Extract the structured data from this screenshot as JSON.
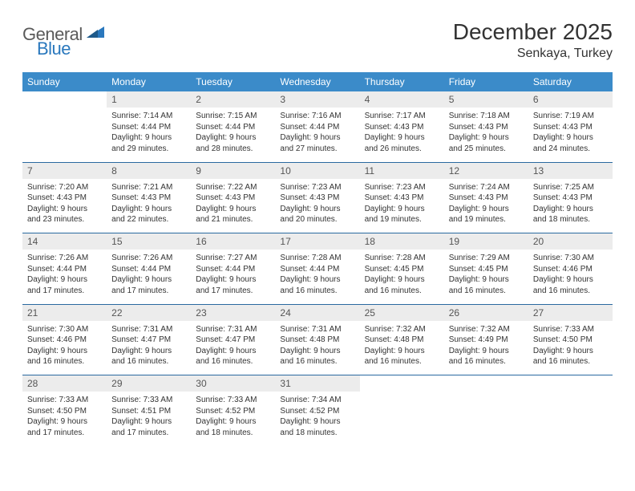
{
  "brand": {
    "text_general": "General",
    "text_blue": "Blue",
    "logo_color": "#2a78bd",
    "text_gray": "#5a5a5a"
  },
  "header": {
    "month_title": "December 2025",
    "location": "Senkaya, Turkey"
  },
  "colors": {
    "header_bg": "#3b8bc9",
    "header_text": "#ffffff",
    "daynum_bg": "#ececec",
    "daynum_text": "#555555",
    "body_text": "#333333",
    "separator": "#2a6aa0",
    "page_bg": "#ffffff"
  },
  "weekdays": [
    "Sunday",
    "Monday",
    "Tuesday",
    "Wednesday",
    "Thursday",
    "Friday",
    "Saturday"
  ],
  "weeks": [
    [
      null,
      {
        "n": "1",
        "sr": "7:14 AM",
        "ss": "4:44 PM",
        "dl": "9 hours and 29 minutes."
      },
      {
        "n": "2",
        "sr": "7:15 AM",
        "ss": "4:44 PM",
        "dl": "9 hours and 28 minutes."
      },
      {
        "n": "3",
        "sr": "7:16 AM",
        "ss": "4:44 PM",
        "dl": "9 hours and 27 minutes."
      },
      {
        "n": "4",
        "sr": "7:17 AM",
        "ss": "4:43 PM",
        "dl": "9 hours and 26 minutes."
      },
      {
        "n": "5",
        "sr": "7:18 AM",
        "ss": "4:43 PM",
        "dl": "9 hours and 25 minutes."
      },
      {
        "n": "6",
        "sr": "7:19 AM",
        "ss": "4:43 PM",
        "dl": "9 hours and 24 minutes."
      }
    ],
    [
      {
        "n": "7",
        "sr": "7:20 AM",
        "ss": "4:43 PM",
        "dl": "9 hours and 23 minutes."
      },
      {
        "n": "8",
        "sr": "7:21 AM",
        "ss": "4:43 PM",
        "dl": "9 hours and 22 minutes."
      },
      {
        "n": "9",
        "sr": "7:22 AM",
        "ss": "4:43 PM",
        "dl": "9 hours and 21 minutes."
      },
      {
        "n": "10",
        "sr": "7:23 AM",
        "ss": "4:43 PM",
        "dl": "9 hours and 20 minutes."
      },
      {
        "n": "11",
        "sr": "7:23 AM",
        "ss": "4:43 PM",
        "dl": "9 hours and 19 minutes."
      },
      {
        "n": "12",
        "sr": "7:24 AM",
        "ss": "4:43 PM",
        "dl": "9 hours and 19 minutes."
      },
      {
        "n": "13",
        "sr": "7:25 AM",
        "ss": "4:43 PM",
        "dl": "9 hours and 18 minutes."
      }
    ],
    [
      {
        "n": "14",
        "sr": "7:26 AM",
        "ss": "4:44 PM",
        "dl": "9 hours and 17 minutes."
      },
      {
        "n": "15",
        "sr": "7:26 AM",
        "ss": "4:44 PM",
        "dl": "9 hours and 17 minutes."
      },
      {
        "n": "16",
        "sr": "7:27 AM",
        "ss": "4:44 PM",
        "dl": "9 hours and 17 minutes."
      },
      {
        "n": "17",
        "sr": "7:28 AM",
        "ss": "4:44 PM",
        "dl": "9 hours and 16 minutes."
      },
      {
        "n": "18",
        "sr": "7:28 AM",
        "ss": "4:45 PM",
        "dl": "9 hours and 16 minutes."
      },
      {
        "n": "19",
        "sr": "7:29 AM",
        "ss": "4:45 PM",
        "dl": "9 hours and 16 minutes."
      },
      {
        "n": "20",
        "sr": "7:30 AM",
        "ss": "4:46 PM",
        "dl": "9 hours and 16 minutes."
      }
    ],
    [
      {
        "n": "21",
        "sr": "7:30 AM",
        "ss": "4:46 PM",
        "dl": "9 hours and 16 minutes."
      },
      {
        "n": "22",
        "sr": "7:31 AM",
        "ss": "4:47 PM",
        "dl": "9 hours and 16 minutes."
      },
      {
        "n": "23",
        "sr": "7:31 AM",
        "ss": "4:47 PM",
        "dl": "9 hours and 16 minutes."
      },
      {
        "n": "24",
        "sr": "7:31 AM",
        "ss": "4:48 PM",
        "dl": "9 hours and 16 minutes."
      },
      {
        "n": "25",
        "sr": "7:32 AM",
        "ss": "4:48 PM",
        "dl": "9 hours and 16 minutes."
      },
      {
        "n": "26",
        "sr": "7:32 AM",
        "ss": "4:49 PM",
        "dl": "9 hours and 16 minutes."
      },
      {
        "n": "27",
        "sr": "7:33 AM",
        "ss": "4:50 PM",
        "dl": "9 hours and 16 minutes."
      }
    ],
    [
      {
        "n": "28",
        "sr": "7:33 AM",
        "ss": "4:50 PM",
        "dl": "9 hours and 17 minutes."
      },
      {
        "n": "29",
        "sr": "7:33 AM",
        "ss": "4:51 PM",
        "dl": "9 hours and 17 minutes."
      },
      {
        "n": "30",
        "sr": "7:33 AM",
        "ss": "4:52 PM",
        "dl": "9 hours and 18 minutes."
      },
      {
        "n": "31",
        "sr": "7:34 AM",
        "ss": "4:52 PM",
        "dl": "9 hours and 18 minutes."
      },
      null,
      null,
      null
    ]
  ],
  "labels": {
    "sunrise": "Sunrise:",
    "sunset": "Sunset:",
    "daylight": "Daylight:"
  }
}
